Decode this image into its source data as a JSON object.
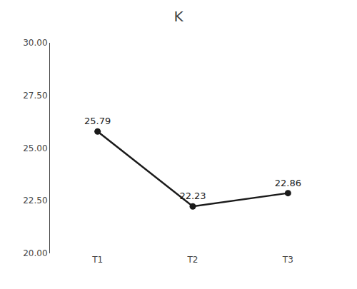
{
  "chart_data": {
    "type": "line",
    "title": "K",
    "categories": [
      "T1",
      "T2",
      "T3"
    ],
    "values": [
      25.79,
      22.23,
      22.86
    ],
    "color": "#1a1a1a",
    "marker": "circle",
    "data_labels": true,
    "ylim": [
      20.0,
      30.0
    ],
    "yticks": [
      {
        "value": 20.0,
        "label": "20.00"
      },
      {
        "value": 22.5,
        "label": "22.50"
      },
      {
        "value": 25.0,
        "label": "25.00"
      },
      {
        "value": 27.5,
        "label": "27.50"
      },
      {
        "value": 30.0,
        "label": "30.00"
      }
    ],
    "grid": false
  }
}
